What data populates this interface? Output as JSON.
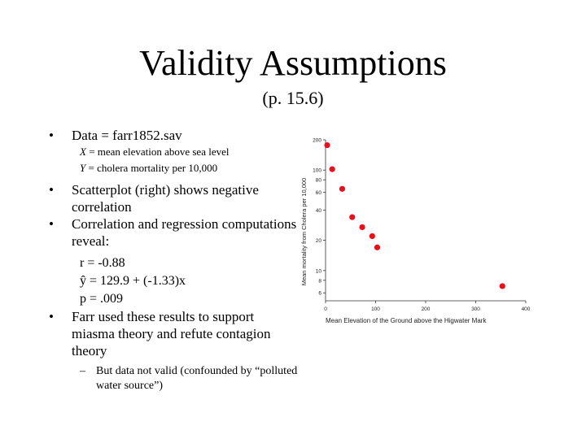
{
  "slide": {
    "title": "Validity Assumptions",
    "subtitle": "(p. 15.6)"
  },
  "bullets": [
    {
      "marker": "•",
      "text": "Data = farr1852.sav"
    },
    {
      "marker": "•",
      "text": "Scatterplot (right) shows negative correlation"
    },
    {
      "marker": "•",
      "text": "Correlation and regression computations reveal:"
    },
    {
      "marker": "•",
      "text": "Farr used these results to support miasma theory and refute contagion theory"
    }
  ],
  "vars": {
    "x_label": "X",
    "x_def": " = mean elevation above sea level",
    "y_label": "Y",
    "y_def": " = cholera mortality per 10,000"
  },
  "stats": {
    "r": "r = -0.88",
    "yhat": "ŷ = 129.9 + (-1.33)x",
    "p": "p = .009"
  },
  "subbullet": {
    "marker": "–",
    "text": "But data not valid (confounded by “polluted water source”)"
  },
  "chart_data": {
    "type": "scatter",
    "xlabel": "Mean Elevation of the Ground above the Higwater Mark",
    "ylabel": "Mean mortality from Cholera per 10,000",
    "xlim": [
      0,
      400
    ],
    "ylim": [
      5,
      200
    ],
    "yscale": "log",
    "xticks": [
      "0",
      "100",
      "200",
      "300",
      "400"
    ],
    "yticks": [
      {
        "value": 6,
        "label": "6"
      },
      {
        "value": 8,
        "label": "8"
      },
      {
        "value": 10,
        "label": "10"
      },
      {
        "value": 20,
        "label": "20"
      },
      {
        "value": 40,
        "label": "40"
      },
      {
        "value": 60,
        "label": "60"
      },
      {
        "value": 80,
        "label": "80"
      },
      {
        "value": 100,
        "label": "100"
      },
      {
        "value": 200,
        "label": "200"
      }
    ],
    "points": [
      {
        "x": 0,
        "y": 177
      },
      {
        "x": 10,
        "y": 102
      },
      {
        "x": 30,
        "y": 65
      },
      {
        "x": 50,
        "y": 34
      },
      {
        "x": 70,
        "y": 27
      },
      {
        "x": 90,
        "y": 22
      },
      {
        "x": 100,
        "y": 17
      },
      {
        "x": 350,
        "y": 7
      }
    ],
    "marker_color": "#e8101a",
    "grid": false
  }
}
